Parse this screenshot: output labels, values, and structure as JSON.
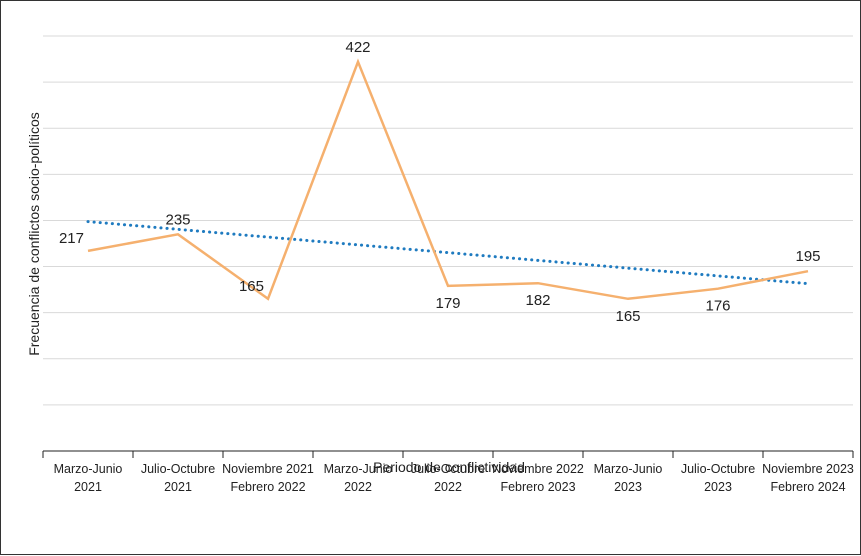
{
  "chart_data": {
    "type": "line",
    "title": "",
    "xlabel": "Periodo de conflictividad",
    "ylabel": "Frecuencia de conflictos socio-políticos",
    "categories": [
      [
        "Marzo-Junio",
        "2021"
      ],
      [
        "Julio-Octubre",
        "2021"
      ],
      [
        "Noviembre 2021",
        "Febrero 2022"
      ],
      [
        "Marzo-Junio",
        "2022"
      ],
      [
        "Julio-Octubre",
        "2022"
      ],
      [
        "Noviembre 2022",
        "Febrero 2023"
      ],
      [
        "Marzo-Junio",
        "2023"
      ],
      [
        "Julio-Octubre",
        "2023"
      ],
      [
        "Noviembre 2023",
        "Febrero 2024"
      ]
    ],
    "series": [
      {
        "values": [
          217,
          235,
          165,
          422,
          179,
          182,
          165,
          176,
          195
        ],
        "color": "#F5B06E",
        "style": "solid"
      }
    ],
    "trendline": {
      "type": "linear",
      "color": "#1F7BC0",
      "style": "dotted"
    },
    "ylim": [
      0,
      450
    ],
    "y_gridlines": [
      50,
      100,
      150,
      200,
      250,
      300,
      350,
      400,
      450
    ],
    "grid": true,
    "legend": "none"
  }
}
